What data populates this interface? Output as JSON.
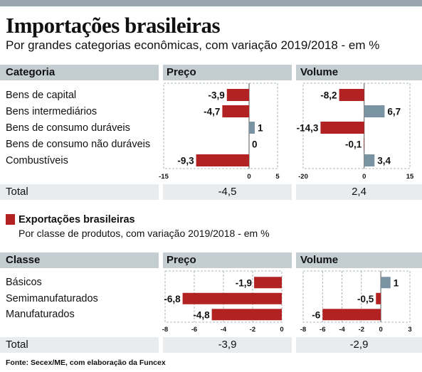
{
  "header": {
    "title": "Importações brasileiras",
    "subtitle": "Por grandes categorias econômicas, com variação 2019/2018 - em %"
  },
  "colors": {
    "negative": "#b22222",
    "positive": "#7a93a2",
    "header_bg": "#c3cdd2",
    "total_bg": "#e8ecee"
  },
  "imports": {
    "col_category": "Categoria",
    "col_price": "Preço",
    "col_volume": "Volume",
    "total_label": "Total",
    "total_price": "-4,5",
    "total_volume": "2,4"
  },
  "exports": {
    "title": "Exportações brasileiras",
    "subtitle": "Por classe de produtos, com variação 2019/2018 - em %",
    "col_class": "Classe",
    "col_price": "Preço",
    "col_volume": "Volume",
    "total_label": "Total",
    "total_price": "-3,9",
    "total_volume": "-2,9"
  },
  "source": "Fonte: Secex/ME, com elaboração da Funcex",
  "chart_data": [
    {
      "type": "bar",
      "orientation": "horizontal",
      "title": "Preço",
      "categories": [
        "Bens de capital",
        "Bens intermediários",
        "Bens de consumo duráveis",
        "Bens de consumo não duráveis",
        "Combustíveis"
      ],
      "values": [
        -3.9,
        -4.7,
        1,
        0,
        -9.3
      ],
      "labels": [
        "-3,9",
        "-4,7",
        "1",
        "0",
        "-9,3"
      ],
      "xlim": [
        -15,
        5
      ],
      "ticks": [
        "-15",
        "0",
        "5"
      ]
    },
    {
      "type": "bar",
      "orientation": "horizontal",
      "title": "Volume",
      "categories": [
        "Bens de capital",
        "Bens intermediários",
        "Bens de consumo duráveis",
        "Bens de consumo não duráveis",
        "Combustíveis"
      ],
      "values": [
        -8.2,
        6.7,
        -14.3,
        -0.1,
        3.4
      ],
      "labels": [
        "-8,2",
        "6,7",
        "-14,3",
        "-0,1",
        "3,4"
      ],
      "xlim": [
        -20,
        15
      ],
      "ticks": [
        "-20",
        "0",
        "15"
      ]
    },
    {
      "type": "bar",
      "orientation": "horizontal",
      "title": "Preço",
      "categories": [
        "Básicos",
        "Semimanufaturados",
        "Manufaturados"
      ],
      "values": [
        -1.9,
        -6.8,
        -4.8
      ],
      "labels": [
        "-1,9",
        "-6,8",
        "-4,8"
      ],
      "xlim": [
        -8,
        0
      ],
      "ticks": [
        "-8",
        "-6",
        "-4",
        "-2",
        "0"
      ]
    },
    {
      "type": "bar",
      "orientation": "horizontal",
      "title": "Volume",
      "categories": [
        "Básicos",
        "Semimanufaturados",
        "Manufaturados"
      ],
      "values": [
        1,
        -0.5,
        -6
      ],
      "labels": [
        "1",
        "-0,5",
        "-6"
      ],
      "xlim": [
        -8,
        3
      ],
      "ticks": [
        "-8",
        "-6",
        "-4",
        "-2",
        "0",
        "3"
      ]
    }
  ]
}
